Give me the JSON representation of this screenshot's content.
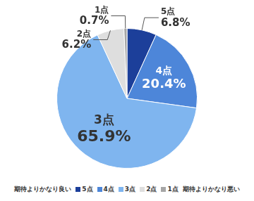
{
  "chart_data": {
    "type": "pie",
    "categories": [
      "5点",
      "4点",
      "3点",
      "2点",
      "1点"
    ],
    "values": [
      6.8,
      20.4,
      65.9,
      6.2,
      0.7
    ],
    "value_labels": [
      "6.8%",
      "20.4%",
      "65.9%",
      "6.2%",
      "0.7%"
    ],
    "colors": [
      "#1c3f9a",
      "#4d86d9",
      "#7fb5ef",
      "#dedede",
      "#a6a6a6"
    ],
    "data_labels": true,
    "legend": "bottom",
    "annotations": [
      "期待よりかなり良い",
      "期待よりかなり悪い"
    ]
  }
}
